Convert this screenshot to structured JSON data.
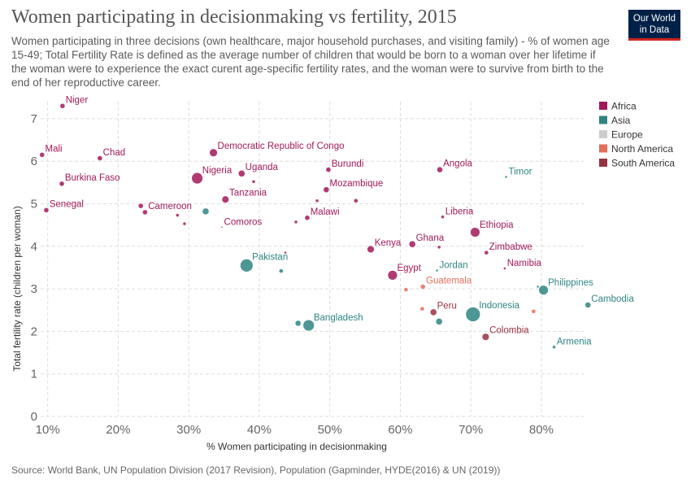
{
  "header": {
    "title": "Women participating in decisionmaking vs fertility, 2015",
    "subtitle": "Women participating in three decisions (own healthcare, major household purchases, and visiting family) - % of women age 15-49; Total Fertility Rate is defined as the average number of children that would be born to a woman over her lifetime if the woman were to experience the exact curent age-specific fertility rates, and the woman were to survive from birth to the end of her reproductive career.",
    "logo_line1": "Our World",
    "logo_line2": "in Data"
  },
  "footer": {
    "source": "Source: World Bank, UN Population Division (2017 Revision), Population (Gapminder, HYDE(2016) & UN (2019))"
  },
  "colors": {
    "Africa": "#a2195b",
    "Asia": "#2e8583",
    "Europe": "#cccccc",
    "North America": "#e56e5a",
    "South America": "#97333e",
    "grid": "#dddddd"
  },
  "chart_data": {
    "type": "scatter",
    "xlabel": "% Women participating in decisionmaking",
    "ylabel": "Total fertility rate (children per woman)",
    "xlim": [
      9,
      86
    ],
    "ylim": [
      0,
      7.4
    ],
    "x_ticks": [
      10,
      20,
      30,
      40,
      50,
      60,
      70,
      80
    ],
    "x_tick_labels": [
      "10%",
      "20%",
      "30%",
      "40%",
      "50%",
      "60%",
      "70%",
      "80%"
    ],
    "y_ticks": [
      0,
      1,
      2,
      3,
      4,
      5,
      6,
      7
    ],
    "grid": true,
    "legend_position": "right",
    "legend": [
      "Africa",
      "Asia",
      "Europe",
      "North America",
      "South America"
    ],
    "points": [
      {
        "label": "Niger",
        "x": 12.1,
        "y": 7.3,
        "region": "Africa",
        "size": 3
      },
      {
        "label": "Mali",
        "x": 9.2,
        "y": 6.15,
        "region": "Africa",
        "size": 3
      },
      {
        "label": "Chad",
        "x": 17.4,
        "y": 6.07,
        "region": "Africa",
        "size": 3
      },
      {
        "label": "Burkina Faso",
        "x": 12.0,
        "y": 5.47,
        "region": "Africa",
        "size": 3
      },
      {
        "label": "Senegal",
        "x": 9.8,
        "y": 4.85,
        "region": "Africa",
        "size": 3
      },
      {
        "label": "Cameroon",
        "x": 23.8,
        "y": 4.8,
        "region": "Africa",
        "size": 3
      },
      {
        "label": "",
        "x": 23.2,
        "y": 4.95,
        "region": "Africa",
        "size": 3
      },
      {
        "label": "",
        "x": 28.4,
        "y": 4.73,
        "region": "Africa",
        "size": 2
      },
      {
        "label": "",
        "x": 29.4,
        "y": 4.53,
        "region": "Africa",
        "size": 2
      },
      {
        "label": "Comoros",
        "x": 34.7,
        "y": 4.45,
        "region": "Africa",
        "size": 1
      },
      {
        "label": "Democratic Republic of Congo",
        "x": 33.5,
        "y": 6.2,
        "region": "Africa",
        "size": 5
      },
      {
        "label": "Nigeria",
        "x": 31.2,
        "y": 5.6,
        "region": "Africa",
        "size": 7
      },
      {
        "label": "Uganda",
        "x": 37.5,
        "y": 5.71,
        "region": "Africa",
        "size": 4
      },
      {
        "label": "",
        "x": 39.2,
        "y": 5.52,
        "region": "Africa",
        "size": 2
      },
      {
        "label": "Tanzania",
        "x": 35.2,
        "y": 5.1,
        "region": "Africa",
        "size": 4.5
      },
      {
        "label": "Burundi",
        "x": 49.8,
        "y": 5.8,
        "region": "Africa",
        "size": 3
      },
      {
        "label": "Mozambique",
        "x": 49.5,
        "y": 5.33,
        "region": "Africa",
        "size": 3.5
      },
      {
        "label": "",
        "x": 48.2,
        "y": 5.07,
        "region": "Africa",
        "size": 2
      },
      {
        "label": "",
        "x": 53.7,
        "y": 5.07,
        "region": "Africa",
        "size": 2.5
      },
      {
        "label": "Malawi",
        "x": 46.8,
        "y": 4.67,
        "region": "Africa",
        "size": 3
      },
      {
        "label": "",
        "x": 45.2,
        "y": 4.57,
        "region": "Africa",
        "size": 2
      },
      {
        "label": "Angola",
        "x": 65.6,
        "y": 5.8,
        "region": "Africa",
        "size": 3.5
      },
      {
        "label": "Liberia",
        "x": 66.0,
        "y": 4.69,
        "region": "Africa",
        "size": 2
      },
      {
        "label": "Ethiopia",
        "x": 70.6,
        "y": 4.33,
        "region": "Africa",
        "size": 6
      },
      {
        "label": "Kenya",
        "x": 55.8,
        "y": 3.93,
        "region": "Africa",
        "size": 4.5
      },
      {
        "label": "Ghana",
        "x": 61.7,
        "y": 4.05,
        "region": "Africa",
        "size": 4
      },
      {
        "label": "",
        "x": 65.5,
        "y": 3.98,
        "region": "Africa",
        "size": 2
      },
      {
        "label": "Zimbabwe",
        "x": 72.2,
        "y": 3.85,
        "region": "Africa",
        "size": 2.5
      },
      {
        "label": "Namibia",
        "x": 74.8,
        "y": 3.48,
        "region": "Africa",
        "size": 1.5
      },
      {
        "label": "Egypt",
        "x": 58.9,
        "y": 3.32,
        "region": "Africa",
        "size": 6
      },
      {
        "label": "",
        "x": 43.7,
        "y": 3.85,
        "region": "Africa",
        "size": 1.5
      },
      {
        "label": "Timor",
        "x": 75.0,
        "y": 5.63,
        "region": "Asia",
        "size": 1.5
      },
      {
        "label": "",
        "x": 32.4,
        "y": 4.82,
        "region": "Asia",
        "size": 4
      },
      {
        "label": "Pakistan",
        "x": 38.2,
        "y": 3.55,
        "region": "Asia",
        "size": 8
      },
      {
        "label": "",
        "x": 43.1,
        "y": 3.42,
        "region": "Asia",
        "size": 2.5
      },
      {
        "label": "Jordan",
        "x": 65.2,
        "y": 3.43,
        "region": "Asia",
        "size": 1.5
      },
      {
        "label": "Philippines",
        "x": 80.3,
        "y": 2.97,
        "region": "Asia",
        "size": 6
      },
      {
        "label": "",
        "x": 79.5,
        "y": 3.05,
        "region": "Asia",
        "size": 1.5
      },
      {
        "label": "Cambodia",
        "x": 86.6,
        "y": 2.62,
        "region": "Asia",
        "size": 3.5
      },
      {
        "label": "Indonesia",
        "x": 70.3,
        "y": 2.4,
        "region": "Asia",
        "size": 9
      },
      {
        "label": "Bangladesh",
        "x": 47.0,
        "y": 2.14,
        "region": "Asia",
        "size": 7
      },
      {
        "label": "",
        "x": 45.5,
        "y": 2.19,
        "region": "Asia",
        "size": 3.5
      },
      {
        "label": "",
        "x": 65.5,
        "y": 2.23,
        "region": "Asia",
        "size": 4
      },
      {
        "label": "Armenia",
        "x": 81.8,
        "y": 1.63,
        "region": "Asia",
        "size": 2
      },
      {
        "label": "Guatemala",
        "x": 63.2,
        "y": 3.05,
        "region": "North America",
        "size": 3
      },
      {
        "label": "",
        "x": 60.8,
        "y": 2.98,
        "region": "North America",
        "size": 2.5
      },
      {
        "label": "",
        "x": 63.1,
        "y": 2.53,
        "region": "North America",
        "size": 2.5
      },
      {
        "label": "",
        "x": 78.9,
        "y": 2.47,
        "region": "North America",
        "size": 2.5
      },
      {
        "label": "Peru",
        "x": 64.7,
        "y": 2.45,
        "region": "South America",
        "size": 4
      },
      {
        "label": "Colombia",
        "x": 72.1,
        "y": 1.87,
        "region": "South America",
        "size": 4.5
      }
    ]
  }
}
